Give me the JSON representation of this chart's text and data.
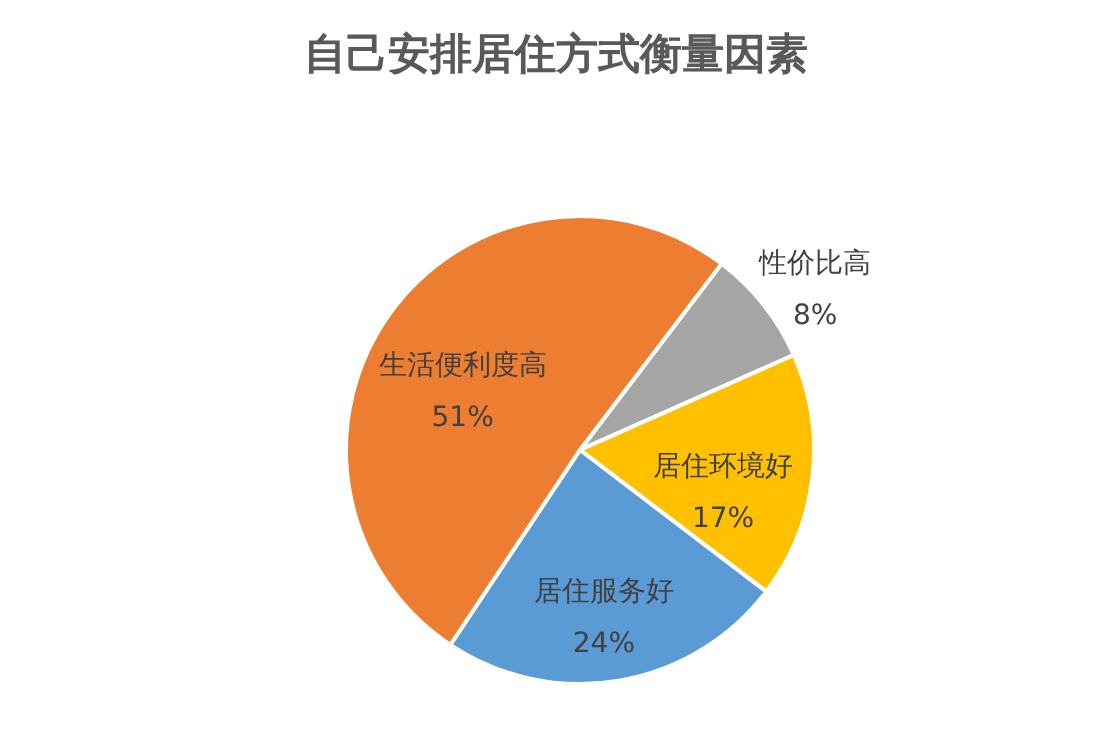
{
  "chart_data": {
    "type": "pie",
    "title": "自己安排居住方式衡量因素",
    "categories": [
      "性价比高",
      "居住环境好",
      "居住服务好",
      "生活便利度高"
    ],
    "values": [
      8,
      17,
      24,
      51
    ],
    "colors": [
      "#a5a5a5",
      "#ffc000",
      "#5b9bd5",
      "#ed7d31"
    ],
    "value_labels": [
      "8%",
      "17%",
      "24%",
      "51%"
    ]
  }
}
